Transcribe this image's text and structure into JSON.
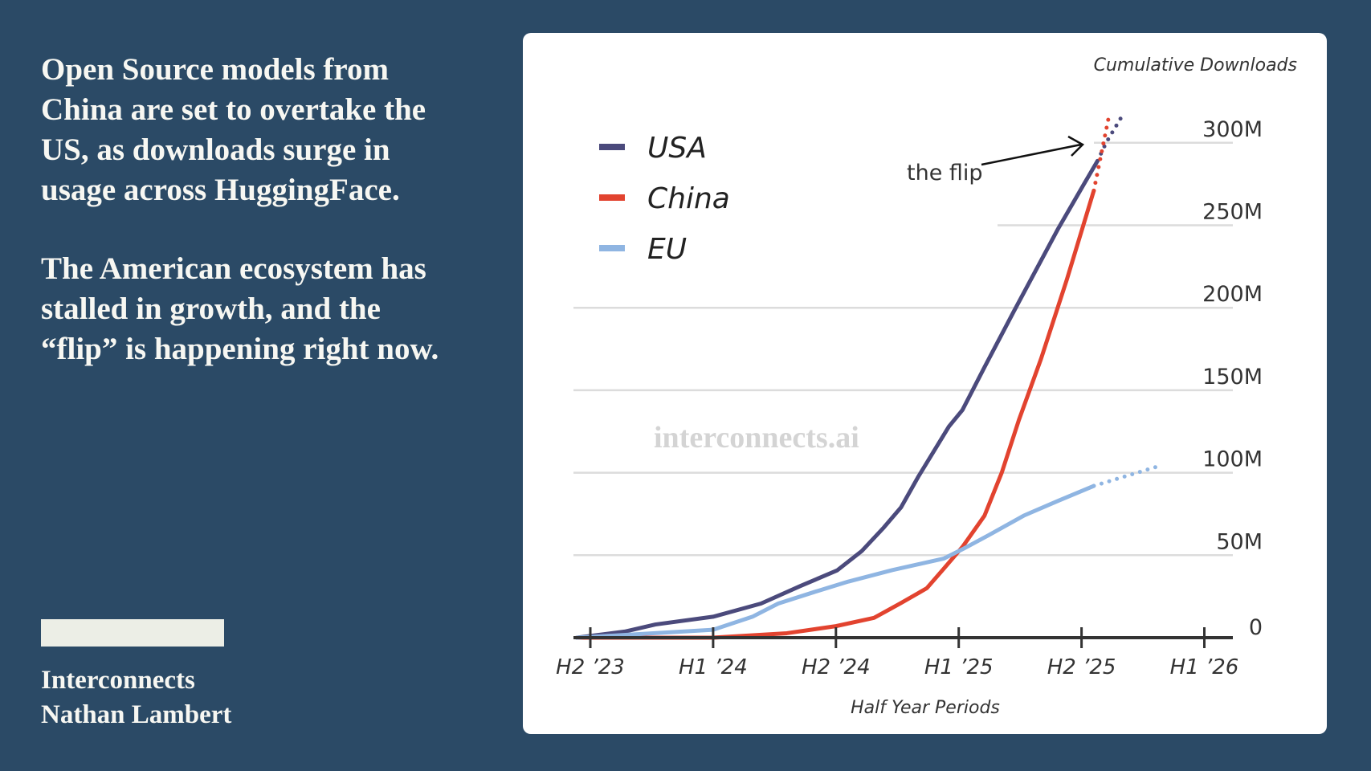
{
  "headline": {
    "paragraph1": "Open Source models from China are set to overtake the US, as downloads surge in usage across HuggingFace.",
    "paragraph2": "The American ecosystem has stalled in growth, and the “flip” is happening right now."
  },
  "byline": {
    "publication": "Interconnects",
    "author": "Nathan Lambert"
  },
  "colors": {
    "background": "#2b4a66",
    "usa": "#4b4a7c",
    "china": "#e2432f",
    "eu": "#8fb5e2"
  },
  "chart_data": {
    "type": "line",
    "title": "",
    "ylabel": "Cumulative Downloads",
    "xlabel": "Half Year Periods",
    "x_categories": [
      "H2 ’23",
      "H1 ’24",
      "H2 ’24",
      "H1 ’25",
      "H2 ’25",
      "H1 ’26"
    ],
    "xlim": [
      -0.15,
      5.0
    ],
    "ylim": [
      0,
      300
    ],
    "y_ticks": [
      0,
      50,
      100,
      150,
      200,
      250,
      300
    ],
    "y_tick_labels": [
      "0",
      "50M",
      "100M",
      "150M",
      "200M",
      "250M",
      "300M"
    ],
    "grid": true,
    "legend_position": "top-left",
    "watermark": "interconnects.ai",
    "annotation": {
      "text": "the flip",
      "points_to": [
        4.15,
        300
      ]
    },
    "series": [
      {
        "name": "USA",
        "color": "#4b4a7c",
        "x": [
          -0.11,
          0.28,
          0.53,
          1.0,
          1.39,
          1.71,
          2.01,
          2.21,
          2.39,
          2.53,
          2.67,
          2.92,
          3.03,
          3.21,
          3.45,
          3.81,
          4.02,
          4.13
        ],
        "y": [
          0,
          3.7,
          8,
          12.7,
          20.7,
          31.3,
          40.8,
          52.5,
          66.8,
          79,
          97.5,
          128,
          138,
          164,
          198,
          248,
          275,
          289
        ],
        "projection": {
          "x": [
            4.13,
            4.2,
            4.32
          ],
          "y": [
            289,
            300,
            315
          ]
        }
      },
      {
        "name": "China",
        "color": "#e2432f",
        "x": [
          -0.11,
          1.0,
          1.6,
          2.0,
          2.31,
          2.53,
          2.74,
          2.88,
          3.03,
          3.21,
          3.35,
          3.49,
          3.67,
          3.88,
          4.1
        ],
        "y": [
          0,
          0,
          2.7,
          7,
          12,
          21,
          30,
          42,
          55,
          74,
          100,
          132,
          169,
          217,
          271
        ],
        "projection": {
          "x": [
            4.1,
            4.22
          ],
          "y": [
            271,
            315
          ]
        }
      },
      {
        "name": "EU",
        "color": "#8fb5e2",
        "x": [
          -0.11,
          1.0,
          1.32,
          1.53,
          1.82,
          2.1,
          2.46,
          2.88,
          3.03,
          3.24,
          3.53,
          3.81,
          4.1
        ],
        "y": [
          0,
          4.8,
          12.7,
          20.7,
          27.6,
          34,
          41,
          48,
          53.6,
          62,
          74,
          83,
          92
        ],
        "projection": {
          "x": [
            4.1,
            4.63
          ],
          "y": [
            92,
            104
          ]
        }
      }
    ]
  }
}
